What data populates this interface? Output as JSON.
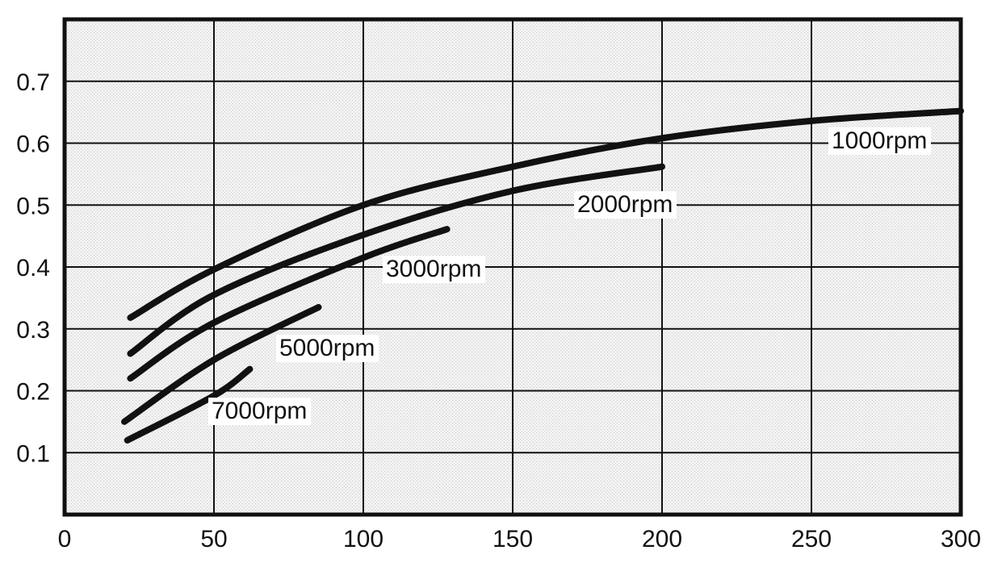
{
  "chart_data": {
    "type": "line",
    "title": "",
    "xlabel": "",
    "ylabel": "",
    "xlim": [
      0,
      300
    ],
    "ylim": [
      0,
      0.8
    ],
    "grid": true,
    "x_ticks": [
      "0",
      "50",
      "100",
      "150",
      "200",
      "250",
      "300"
    ],
    "y_ticks": [
      "0.1",
      "0.2",
      "0.3",
      "0.4",
      "0.5",
      "0.6",
      "0.7"
    ],
    "x_tick_values": [
      0,
      50,
      100,
      150,
      200,
      250,
      300
    ],
    "y_tick_values": [
      0.1,
      0.2,
      0.3,
      0.4,
      0.5,
      0.6,
      0.7
    ],
    "series": [
      {
        "name": "1000rpm",
        "x": [
          22,
          50,
          100,
          150,
          200,
          250,
          300
        ],
        "y": [
          0.318,
          0.396,
          0.5,
          0.562,
          0.608,
          0.636,
          0.652
        ]
      },
      {
        "name": "2000rpm",
        "x": [
          22,
          50,
          100,
          150,
          200
        ],
        "y": [
          0.26,
          0.355,
          0.452,
          0.523,
          0.562
        ]
      },
      {
        "name": "3000rpm",
        "x": [
          22,
          50,
          100,
          128
        ],
        "y": [
          0.22,
          0.31,
          0.415,
          0.461
        ]
      },
      {
        "name": "5000rpm",
        "x": [
          20,
          50,
          85
        ],
        "y": [
          0.15,
          0.25,
          0.335
        ]
      },
      {
        "name": "7000rpm",
        "x": [
          21,
          50,
          62
        ],
        "y": [
          0.12,
          0.192,
          0.235
        ]
      }
    ],
    "colors": {
      "line": "#111111",
      "background": "#ececec",
      "grid": "#111111"
    }
  }
}
